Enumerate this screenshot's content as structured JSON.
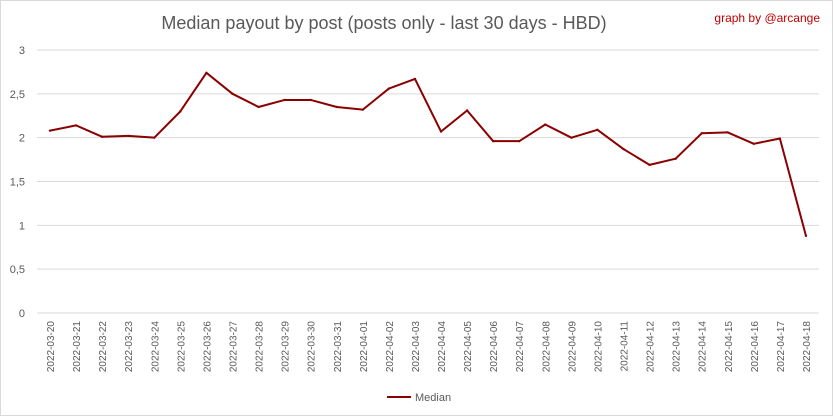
{
  "credit": "graph by @arcange",
  "chart_data": {
    "type": "line",
    "title": "Median payout by post (posts only - last 30 days - HBD)",
    "xlabel": "",
    "ylabel": "",
    "ylim": [
      0,
      3
    ],
    "yticks": [
      "0",
      "0,5",
      "1",
      "1,5",
      "2",
      "2,5",
      "3"
    ],
    "grid": true,
    "legend_position": "bottom",
    "x": [
      "2022-03-20",
      "2022-03-21",
      "2022-03-22",
      "2022-03-23",
      "2022-03-24",
      "2022-03-25",
      "2022-03-26",
      "2022-03-27",
      "2022-03-28",
      "2022-03-29",
      "2022-03-30",
      "2022-03-31",
      "2022-04-01",
      "2022-04-02",
      "2022-04-03",
      "2022-04-04",
      "2022-04-05",
      "2022-04-06",
      "2022-04-07",
      "2022-04-08",
      "2022-04-09",
      "2022-04-10",
      "2022-04-11",
      "2022-04-12",
      "2022-04-13",
      "2022-04-14",
      "2022-04-15",
      "2022-04-16",
      "2022-04-17",
      "2022-04-18"
    ],
    "series": [
      {
        "name": "Median",
        "color": "#8b0000",
        "values": [
          2.08,
          2.14,
          2.01,
          2.02,
          2.0,
          2.3,
          2.74,
          2.5,
          2.35,
          2.43,
          2.43,
          2.35,
          2.32,
          2.56,
          2.67,
          2.07,
          2.31,
          1.96,
          1.96,
          2.15,
          2.0,
          2.09,
          1.87,
          1.69,
          1.76,
          2.05,
          2.06,
          1.93,
          1.99,
          0.88
        ]
      }
    ]
  }
}
